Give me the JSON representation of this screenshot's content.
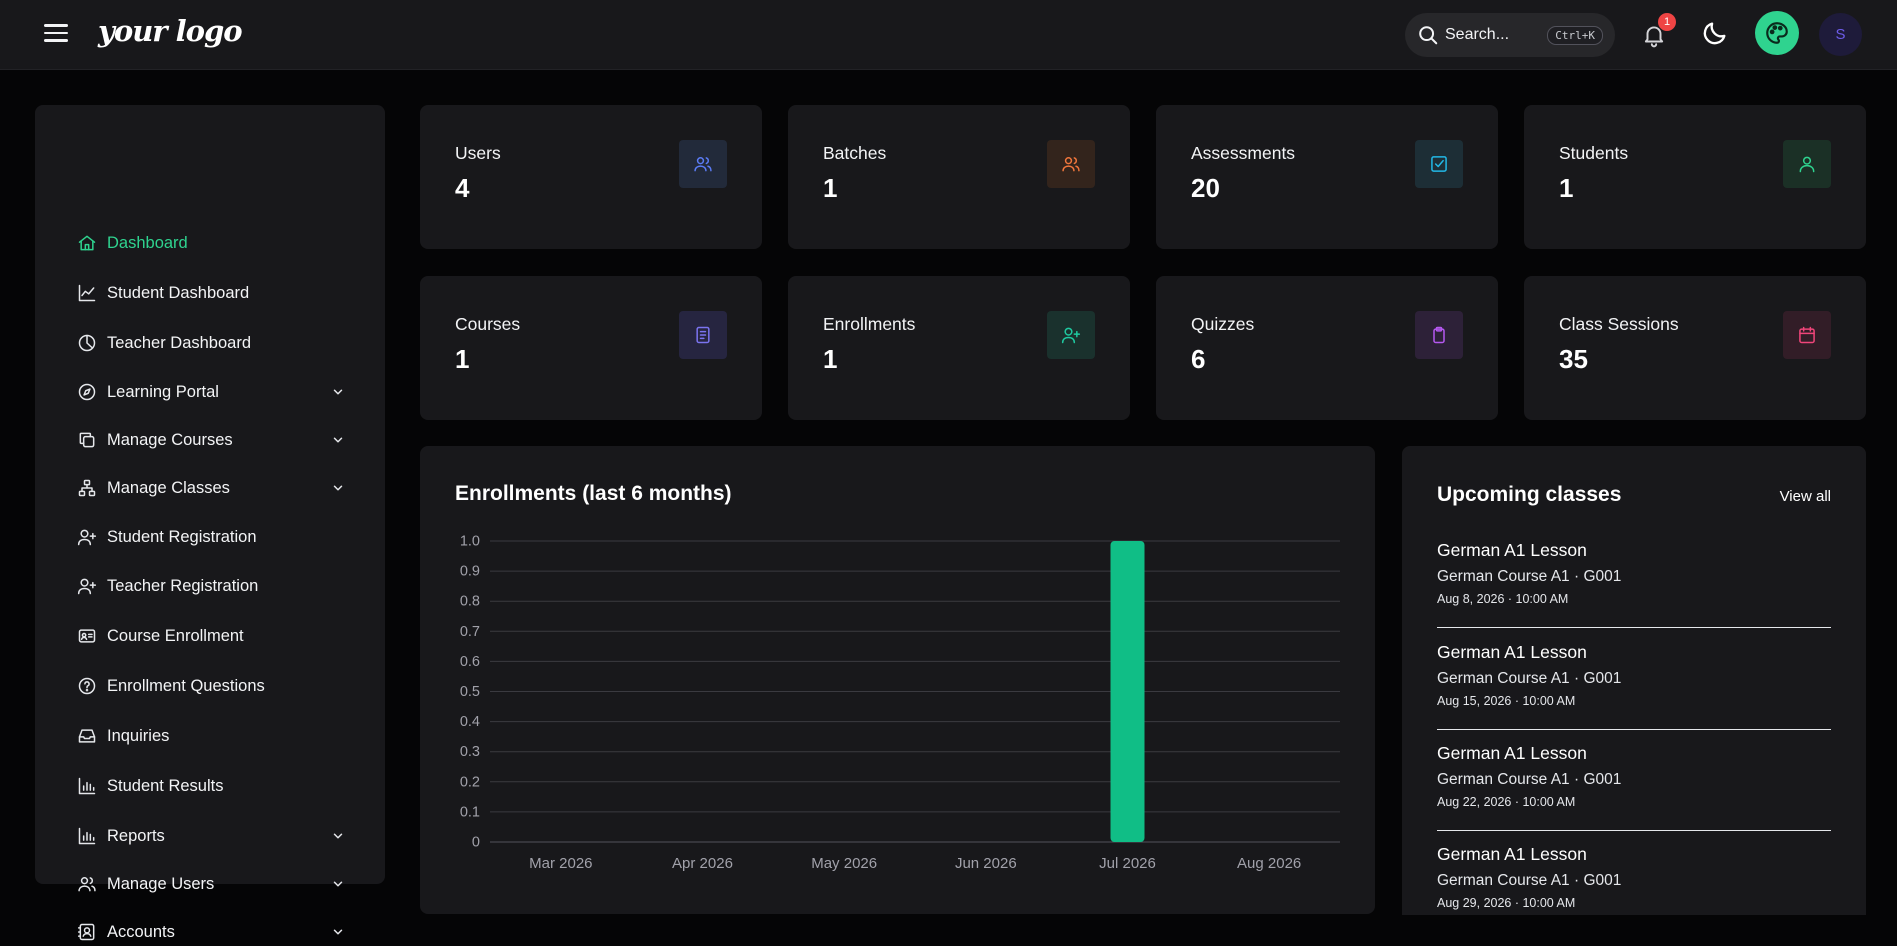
{
  "topbar": {
    "logo_text": "your logo",
    "search_placeholder": "Search...",
    "search_shortcut": "Ctrl+K",
    "notification_count": "1",
    "avatar_initial": "S"
  },
  "sidebar": {
    "items": [
      {
        "label": "Dashboard",
        "icon": "home-icon",
        "active": true,
        "has_submenu": false
      },
      {
        "label": "Student Dashboard",
        "icon": "chart-line-icon",
        "active": false,
        "has_submenu": false
      },
      {
        "label": "Teacher Dashboard",
        "icon": "pie-chart-icon",
        "active": false,
        "has_submenu": false
      },
      {
        "label": "Learning Portal",
        "icon": "compass-icon",
        "active": false,
        "has_submenu": true
      },
      {
        "label": "Manage Courses",
        "icon": "copy-icon",
        "active": false,
        "has_submenu": true
      },
      {
        "label": "Manage Classes",
        "icon": "sitemap-icon",
        "active": false,
        "has_submenu": true
      },
      {
        "label": "Student Registration",
        "icon": "user-plus-icon",
        "active": false,
        "has_submenu": false
      },
      {
        "label": "Teacher Registration",
        "icon": "user-plus-icon",
        "active": false,
        "has_submenu": false
      },
      {
        "label": "Course Enrollment",
        "icon": "id-card-icon",
        "active": false,
        "has_submenu": false
      },
      {
        "label": "Enrollment Questions",
        "icon": "help-circle-icon",
        "active": false,
        "has_submenu": false
      },
      {
        "label": "Inquiries",
        "icon": "inbox-icon",
        "active": false,
        "has_submenu": false
      },
      {
        "label": "Student Results",
        "icon": "bar-chart-icon",
        "active": false,
        "has_submenu": false
      },
      {
        "label": "Reports",
        "icon": "bar-chart-icon",
        "active": false,
        "has_submenu": true
      },
      {
        "label": "Manage Users",
        "icon": "users-icon",
        "active": false,
        "has_submenu": true
      },
      {
        "label": "Accounts",
        "icon": "contact-icon",
        "active": false,
        "has_submenu": true
      }
    ]
  },
  "stats": [
    {
      "label": "Users",
      "value": "4",
      "icon": "users-icon",
      "color": "#5b7cf6",
      "bg": "#222a3a"
    },
    {
      "label": "Batches",
      "value": "1",
      "icon": "users-icon",
      "color": "#f0763c",
      "bg": "#33241c"
    },
    {
      "label": "Assessments",
      "value": "20",
      "icon": "check-square-icon",
      "color": "#22b8e6",
      "bg": "#1d2e36"
    },
    {
      "label": "Students",
      "value": "1",
      "icon": "user-icon",
      "color": "#2fd38f",
      "bg": "#1b3026"
    },
    {
      "label": "Courses",
      "value": "1",
      "icon": "book-icon",
      "color": "#7b74f0",
      "bg": "#262540"
    },
    {
      "label": "Enrollments",
      "value": "1",
      "icon": "user-plus-icon",
      "color": "#1fc9a0",
      "bg": "#1a312d"
    },
    {
      "label": "Quizzes",
      "value": "6",
      "icon": "clipboard-icon",
      "color": "#b559f0",
      "bg": "#2d2138"
    },
    {
      "label": "Class Sessions",
      "value": "35",
      "icon": "calendar-icon",
      "color": "#f0457a",
      "bg": "#321d27"
    }
  ],
  "chart_panel": {
    "title": "Enrollments (last 6 months)"
  },
  "chart_data": {
    "type": "bar",
    "title": "Enrollments (last 6 months)",
    "categories": [
      "Mar 2026",
      "Apr 2026",
      "May 2026",
      "Jun 2026",
      "Jul 2026",
      "Aug 2026"
    ],
    "values": [
      0,
      0,
      0,
      0,
      1,
      0
    ],
    "ylim": [
      0,
      1.0
    ],
    "yticks": [
      "0",
      "0.1",
      "0.2",
      "0.3",
      "0.4",
      "0.5",
      "0.6",
      "0.7",
      "0.8",
      "0.9",
      "1.0"
    ],
    "grid": true,
    "bar_color": "#10be86"
  },
  "upcoming": {
    "title": "Upcoming classes",
    "view_all": "View all",
    "items": [
      {
        "title": "German A1 Lesson",
        "course": "German Course A1 · G001",
        "when": "Aug 8, 2026 · 10:00 AM"
      },
      {
        "title": "German A1 Lesson",
        "course": "German Course A1 · G001",
        "when": "Aug 15, 2026 · 10:00 AM"
      },
      {
        "title": "German A1 Lesson",
        "course": "German Course A1 · G001",
        "when": "Aug 22, 2026 · 10:00 AM"
      },
      {
        "title": "German A1 Lesson",
        "course": "German Course A1 · G001",
        "when": "Aug 29, 2026 · 10:00 AM"
      }
    ]
  }
}
